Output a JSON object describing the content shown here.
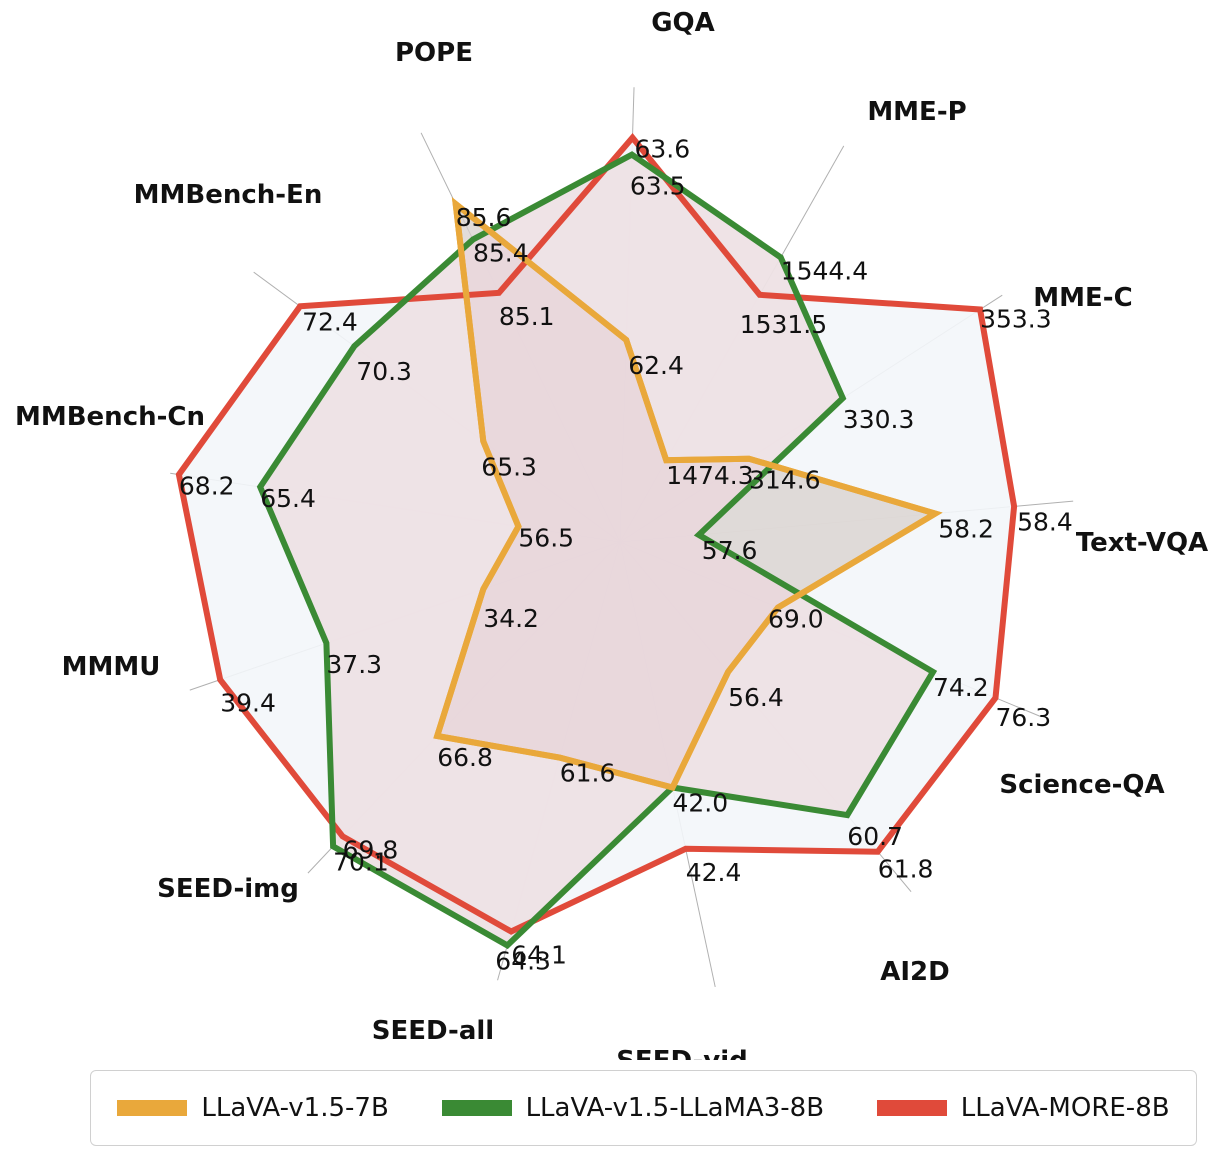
{
  "chart_data": {
    "type": "radar",
    "categories": [
      "Text-VQA",
      "MME-C",
      "MME-P",
      "GQA",
      "POPE",
      "MMBench-En",
      "MMBench-Cn",
      "MMMU",
      "SEED-img",
      "SEED-all",
      "SEED-vid",
      "AI2D",
      "Science-QA"
    ],
    "series": [
      {
        "name": "LLaVA-v1.5-7B",
        "color": "#e9a83b",
        "values": [
          58.2,
          314.6,
          1474.3,
          62.4,
          85.6,
          65.3,
          56.5,
          34.2,
          66.8,
          61.6,
          42.0,
          56.4,
          69.0
        ]
      },
      {
        "name": "LLaVA-v1.5-LLaMA3-8B",
        "color": "#3a8a34",
        "values": [
          57.6,
          330.3,
          1544.4,
          63.5,
          85.4,
          70.3,
          65.4,
          37.3,
          70.1,
          64.3,
          42.0,
          60.7,
          74.2
        ]
      },
      {
        "name": "LLaVA-MORE-8B",
        "color": "#e04a3a",
        "values": [
          58.4,
          353.3,
          1531.5,
          63.6,
          85.1,
          72.4,
          68.2,
          39.4,
          69.8,
          64.1,
          42.4,
          61.8,
          76.3
        ]
      }
    ],
    "value_labels": [
      [
        "58.2",
        "314.6",
        "1474.3",
        "62.4",
        "85.6",
        "65.3",
        "56.5",
        "34.2",
        "66.8",
        "61.6",
        "42.0",
        "56.4",
        "69.0"
      ],
      [
        "57.6",
        "330.3",
        "1544.4",
        "63.5",
        "85.4",
        "70.3",
        "65.4",
        "37.3",
        "70.1",
        "64.3",
        "",
        "60.7",
        "74.2"
      ],
      [
        "58.4",
        "353.3",
        "1531.5",
        "63.6",
        "85.1",
        "72.4",
        "68.2",
        "39.4",
        "69.8",
        "64.1",
        "42.4",
        "61.8",
        "76.3"
      ]
    ],
    "legend_position": "bottom",
    "grid": true
  }
}
